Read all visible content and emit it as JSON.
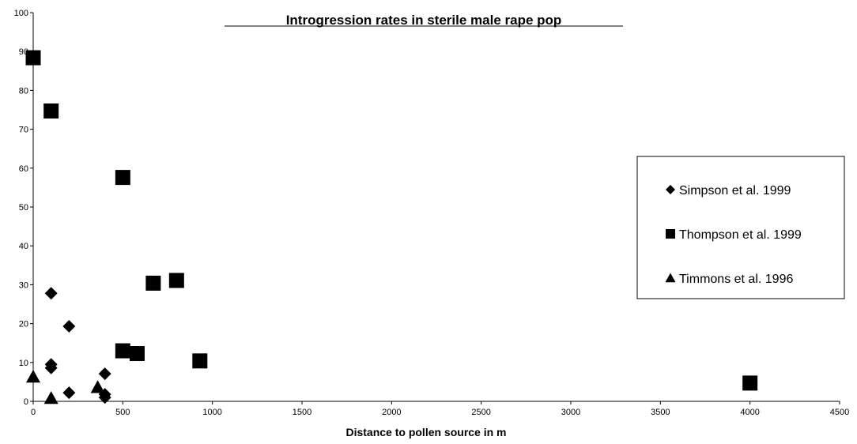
{
  "chart_data": {
    "type": "scatter",
    "title": "Introgression rates in sterile male rape pop",
    "xlabel": "Distance to pollen source in m",
    "ylabel": "",
    "xlim": [
      0,
      4500
    ],
    "ylim": [
      0,
      100
    ],
    "xticks": [
      0,
      500,
      1000,
      1500,
      2000,
      2500,
      3000,
      3500,
      4000,
      4500
    ],
    "yticks": [
      0,
      10,
      20,
      30,
      40,
      50,
      60,
      70,
      80,
      90,
      100
    ],
    "grid": false,
    "legend_position": "right",
    "series": [
      {
        "name": "Simpson et al. 1999",
        "marker": "diamond",
        "color": "#000000",
        "points": [
          [
            100,
            27.8
          ],
          [
            200,
            19.3
          ],
          [
            100,
            9.5
          ],
          [
            100,
            8.6
          ],
          [
            400,
            7.1
          ],
          [
            200,
            2.2
          ],
          [
            400,
            1.8
          ],
          [
            400,
            1.0
          ]
        ]
      },
      {
        "name": "Thompson et al. 1999",
        "marker": "square",
        "color": "#000000",
        "points": [
          [
            0,
            88.4
          ],
          [
            100,
            74.7
          ],
          [
            500,
            57.6
          ],
          [
            670,
            30.4
          ],
          [
            800,
            31.1
          ],
          [
            500,
            13.0
          ],
          [
            580,
            12.3
          ],
          [
            930,
            10.4
          ],
          [
            4000,
            4.7
          ]
        ]
      },
      {
        "name": "Timmons et al. 1996",
        "marker": "triangle",
        "color": "#000000",
        "points": [
          [
            0,
            6.3
          ],
          [
            360,
            3.6
          ],
          [
            100,
            0.8
          ]
        ]
      }
    ]
  }
}
